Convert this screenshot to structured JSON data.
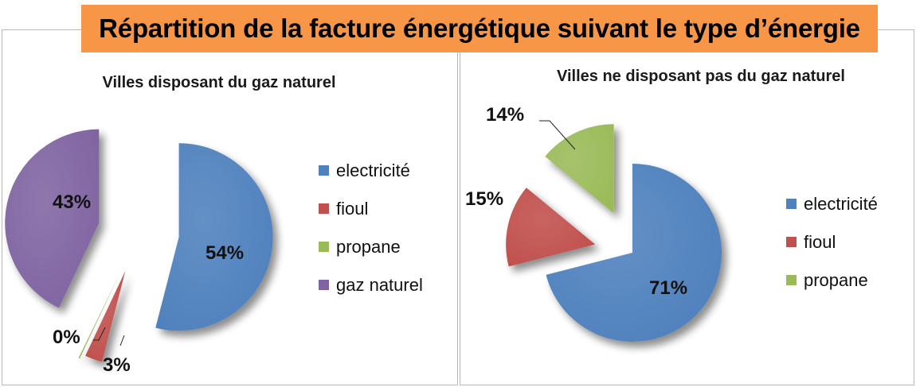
{
  "title": "Répartition de la facture énergétique suivant le type d’énergie",
  "colors": {
    "electricite": "#4f81bd",
    "fioul": "#c0504d",
    "propane": "#9bbb59",
    "gaz_naturel": "#8064a2",
    "banner": "#f79646"
  },
  "chart_data": [
    {
      "type": "pie",
      "title": "Villes disposant du gaz naturel",
      "categories": [
        "electricité",
        "fioul",
        "propane",
        "gaz naturel"
      ],
      "values": [
        54,
        3,
        0,
        43
      ],
      "data_labels": [
        "54%",
        "3%",
        "0%",
        "43%"
      ],
      "exploded": true,
      "legend_position": "right"
    },
    {
      "type": "pie",
      "title": "Villes ne disposant pas du gaz naturel",
      "categories": [
        "electricité",
        "fioul",
        "propane"
      ],
      "values": [
        71,
        15,
        14
      ],
      "data_labels": [
        "71%",
        "15%",
        "14%"
      ],
      "exploded": true,
      "legend_position": "right"
    }
  ]
}
